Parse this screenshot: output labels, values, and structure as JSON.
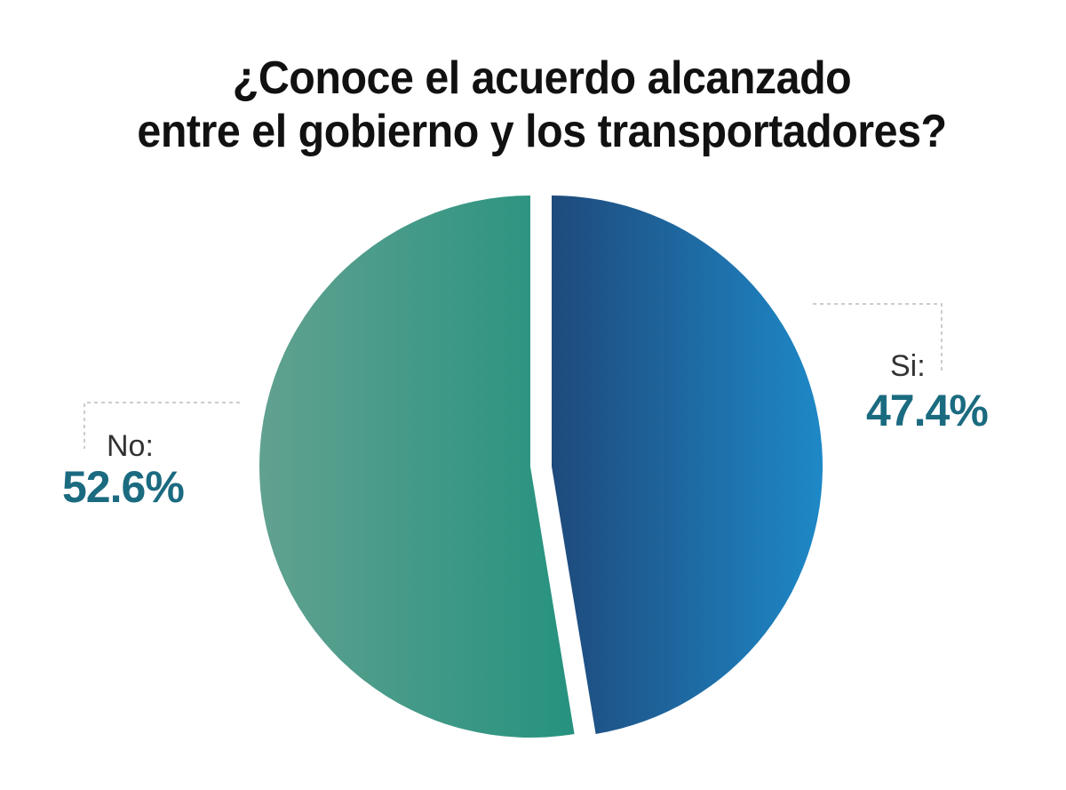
{
  "chart_data": {
    "type": "pie",
    "title_lines": [
      "¿Conoce el acuerdo alcanzado",
      "entre el gobierno y los transportadores?"
    ],
    "slices": [
      {
        "label": "Si:",
        "value": 47.4,
        "value_text": "47.4%",
        "color_start": "#1e4a7c",
        "color_end": "#1e88c7"
      },
      {
        "label": "No:",
        "value": 52.6,
        "value_text": "52.6%",
        "color_start": "#61a190",
        "color_end": "#26927f"
      }
    ],
    "label_color": "#1b6b80",
    "legend": "none"
  }
}
